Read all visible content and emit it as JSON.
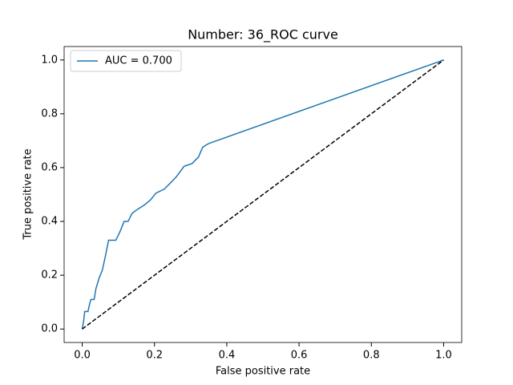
{
  "chart_data": {
    "type": "line",
    "title": "Number: 36_ROC curve",
    "x_label": "False positive rate",
    "y_label": "True positive rate",
    "xlim": [
      -0.05,
      1.05
    ],
    "ylim": [
      -0.05,
      1.05
    ],
    "xticks": [
      {
        "value": 0,
        "label": "0.0"
      },
      0.2,
      0.4,
      0.6,
      0.8,
      {
        "value": 1,
        "label": "1.0"
      }
    ],
    "yticks": [
      {
        "value": 0,
        "label": "0.0"
      },
      0.2,
      0.4,
      0.6,
      0.8,
      {
        "value": 1,
        "label": "1.0"
      }
    ],
    "legend": "upper left",
    "series": [
      {
        "name": "AUC = 0.700",
        "color": "#1f77b4",
        "linestyle": "solid",
        "x": [
          0,
          0.004,
          0.007,
          0.016,
          0.02,
          0.024,
          0.033,
          0.038,
          0.047,
          0.056,
          0.064,
          0.073,
          0.093,
          0.104,
          0.116,
          0.127,
          0.138,
          0.153,
          0.171,
          0.189,
          0.204,
          0.227,
          0.242,
          0.26,
          0.282,
          0.304,
          0.322,
          0.333,
          0.344,
          0.351,
          1
        ],
        "values": [
          0,
          0.03,
          0.065,
          0.065,
          0.09,
          0.11,
          0.11,
          0.15,
          0.19,
          0.22,
          0.27,
          0.33,
          0.33,
          0.36,
          0.4,
          0.4,
          0.43,
          0.445,
          0.46,
          0.48,
          0.505,
          0.52,
          0.54,
          0.565,
          0.605,
          0.615,
          0.64,
          0.675,
          0.685,
          0.69,
          1
        ]
      },
      {
        "color": "#000000",
        "linestyle": "dashed",
        "x": [
          0,
          1
        ],
        "values": [
          0,
          1
        ]
      }
    ]
  }
}
